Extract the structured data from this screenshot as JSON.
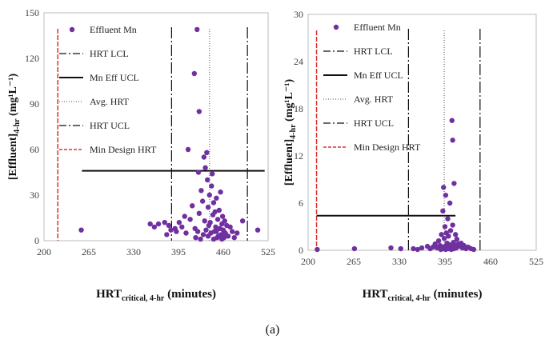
{
  "caption": "(a)",
  "colors": {
    "point": "#7030A0",
    "hrt_limits": "#111111",
    "ucl": "#111111",
    "avg_hrt": "#888888",
    "min_design": "#E03030",
    "frame": "#bbbbbb"
  },
  "chart_data": [
    {
      "type": "scatter",
      "title": "",
      "xlabel": "HRT",
      "xlabel_sub": "critical, 4-hr",
      "xlabel_suffix": " (minutes)",
      "ylabel": "[Effluent]",
      "ylabel_sub": "4-hr",
      "ylabel_unit": " (mg¹L⁻¹)",
      "xlim": [
        200,
        525
      ],
      "ylim": [
        0,
        150
      ],
      "xticks": [
        200,
        265,
        330,
        395,
        460,
        525
      ],
      "yticks": [
        0,
        30,
        60,
        90,
        120,
        150
      ],
      "legend_position": "top-left",
      "legend": [
        "Effluent Mn",
        "HRT LCL",
        "Mn Eff UCL",
        "Avg. HRT",
        "HRT UCL",
        "Min Design HRT"
      ],
      "reference_lines": {
        "hrt_lcl": 385,
        "hrt_ucl": 495,
        "avg_hrt": 440,
        "min_design_hrt": 220,
        "mn_eff_ucl": {
          "y": 46,
          "x_from": 255,
          "x_to": 520
        }
      },
      "points": [
        [
          254,
          7
        ],
        [
          354,
          11
        ],
        [
          360,
          9
        ],
        [
          366,
          11
        ],
        [
          375,
          12
        ],
        [
          378,
          4
        ],
        [
          381,
          10
        ],
        [
          384,
          7
        ],
        [
          390,
          8
        ],
        [
          392,
          6
        ],
        [
          396,
          12
        ],
        [
          400,
          9
        ],
        [
          404,
          16
        ],
        [
          406,
          5
        ],
        [
          409,
          60
        ],
        [
          412,
          14
        ],
        [
          415,
          23
        ],
        [
          418,
          110
        ],
        [
          419,
          8
        ],
        [
          422,
          139
        ],
        [
          424,
          45
        ],
        [
          425,
          85
        ],
        [
          425,
          18
        ],
        [
          428,
          33
        ],
        [
          430,
          26
        ],
        [
          432,
          55
        ],
        [
          433,
          13
        ],
        [
          434,
          48
        ],
        [
          436,
          58
        ],
        [
          437,
          40
        ],
        [
          438,
          22
        ],
        [
          438,
          3
        ],
        [
          440,
          30
        ],
        [
          441,
          12
        ],
        [
          443,
          36
        ],
        [
          444,
          44
        ],
        [
          445,
          17
        ],
        [
          446,
          25
        ],
        [
          447,
          6
        ],
        [
          448,
          19
        ],
        [
          449,
          9
        ],
        [
          450,
          28
        ],
        [
          451,
          2
        ],
        [
          452,
          14
        ],
        [
          454,
          20
        ],
        [
          455,
          8
        ],
        [
          456,
          32
        ],
        [
          457,
          4
        ],
        [
          458,
          11
        ],
        [
          459,
          16
        ],
        [
          460,
          7
        ],
        [
          462,
          13
        ],
        [
          463,
          5
        ],
        [
          465,
          10
        ],
        [
          467,
          3
        ],
        [
          470,
          9
        ],
        [
          473,
          6
        ],
        [
          476,
          2
        ],
        [
          480,
          5
        ],
        [
          488,
          13
        ],
        [
          510,
          7
        ],
        [
          420,
          2
        ],
        [
          423,
          6
        ],
        [
          427,
          1
        ],
        [
          431,
          4
        ],
        [
          435,
          7
        ],
        [
          439,
          10
        ],
        [
          442,
          5
        ],
        [
          446,
          1
        ],
        [
          450,
          6
        ],
        [
          453,
          3
        ],
        [
          458,
          1
        ],
        [
          461,
          2
        ]
      ]
    },
    {
      "type": "scatter",
      "title": "",
      "xlabel": "HRT",
      "xlabel_sub": "critical, 4-hr",
      "xlabel_suffix": " (minutes)",
      "ylabel": "[Effluent]",
      "ylabel_sub": "4-hr",
      "ylabel_unit": " (mg¹L⁻¹)",
      "xlim": [
        200,
        525
      ],
      "ylim": [
        0,
        30
      ],
      "xticks": [
        200,
        265,
        330,
        395,
        460,
        525
      ],
      "yticks": [
        0,
        6,
        12,
        18,
        24,
        30
      ],
      "legend_position": "top-left",
      "legend": [
        "Effluent Mn",
        "HRT LCL",
        "Mn Eff UCL",
        "Avg. HRT",
        "HRT UCL",
        "Min Design HRT"
      ],
      "reference_lines": {
        "hrt_lcl": 343,
        "hrt_ucl": 445,
        "avg_hrt": 394,
        "min_design_hrt": 212,
        "mn_eff_ucl": {
          "y": 4.4,
          "x_from": 212,
          "x_to": 410
        }
      },
      "points": [
        [
          213,
          0.1
        ],
        [
          266,
          0.2
        ],
        [
          318,
          0.3
        ],
        [
          332,
          0.2
        ],
        [
          350,
          0.2
        ],
        [
          356,
          0.1
        ],
        [
          362,
          0.3
        ],
        [
          370,
          0.5
        ],
        [
          374,
          0.2
        ],
        [
          378,
          0.4
        ],
        [
          381,
          0.8
        ],
        [
          384,
          0.3
        ],
        [
          386,
          1.2
        ],
        [
          388,
          0.6
        ],
        [
          390,
          2.0
        ],
        [
          391,
          0.4
        ],
        [
          392,
          5.0
        ],
        [
          393,
          8.0
        ],
        [
          394,
          1.5
        ],
        [
          395,
          3.0
        ],
        [
          395,
          0.5
        ],
        [
          396,
          7.0
        ],
        [
          397,
          2.2
        ],
        [
          398,
          0.9
        ],
        [
          399,
          4.0
        ],
        [
          400,
          1.8
        ],
        [
          401,
          0.7
        ],
        [
          402,
          6.0
        ],
        [
          403,
          2.5
        ],
        [
          404,
          0.4
        ],
        [
          405,
          16.5
        ],
        [
          406,
          14.0
        ],
        [
          406,
          3.2
        ],
        [
          407,
          1.0
        ],
        [
          408,
          8.5
        ],
        [
          409,
          0.6
        ],
        [
          410,
          2.0
        ],
        [
          411,
          0.3
        ],
        [
          412,
          1.4
        ],
        [
          414,
          0.8
        ],
        [
          416,
          0.5
        ],
        [
          418,
          0.9
        ],
        [
          420,
          0.3
        ],
        [
          422,
          0.6
        ],
        [
          425,
          0.2
        ],
        [
          428,
          0.4
        ],
        [
          432,
          0.2
        ],
        [
          436,
          0.1
        ],
        [
          389,
          0.1
        ],
        [
          392,
          0.2
        ],
        [
          396,
          0.1
        ],
        [
          400,
          0.2
        ],
        [
          404,
          0.1
        ],
        [
          408,
          0.2
        ]
      ]
    }
  ]
}
